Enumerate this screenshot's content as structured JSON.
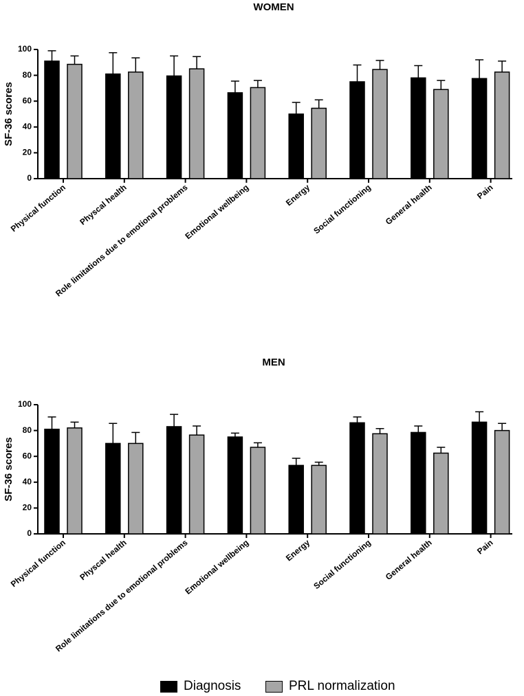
{
  "colors": {
    "diagnosis": "#000000",
    "prl": "#a6a6a6",
    "axis": "#000000"
  },
  "legend": {
    "diagnosis": "Diagnosis",
    "prl": "PRL normalization"
  },
  "chart_data": [
    {
      "type": "bar",
      "title": "WOMEN",
      "ylabel": "SF-36 scores",
      "xlabel": "",
      "ylim": [
        0,
        100
      ],
      "yticks": [
        0,
        20,
        40,
        60,
        80,
        100
      ],
      "yticklabels": [
        "0",
        "20",
        "40",
        "60",
        "80",
        "100"
      ],
      "categories": [
        "Physical function",
        "Physcal health",
        "Role limitations due to emotional problems",
        "Emotional wellbeing",
        "Energy",
        "Social functioning",
        "General health",
        "Pain"
      ],
      "series": [
        {
          "name": "Diagnosis",
          "values": [
            91,
            81,
            79.5,
            66.5,
            50,
            75,
            78,
            77.5
          ],
          "errors": [
            8,
            16.5,
            15.5,
            9,
            9,
            13,
            9.5,
            14.5
          ]
        },
        {
          "name": "PRL normalization",
          "values": [
            88.5,
            82.5,
            85,
            70.5,
            54.5,
            84.5,
            69,
            82.5
          ],
          "errors": [
            6.5,
            11,
            9.5,
            5.5,
            6.5,
            7,
            7,
            8.5
          ]
        }
      ]
    },
    {
      "type": "bar",
      "title": "MEN",
      "ylabel": "SF-36 scores",
      "xlabel": "",
      "ylim": [
        0,
        100
      ],
      "yticks": [
        0,
        20,
        40,
        60,
        80,
        100
      ],
      "yticklabels": [
        "0",
        "20",
        "40",
        "60",
        "80",
        "100"
      ],
      "categories": [
        "Physical function",
        "Physcal health",
        "Role limitations due to emotional problems",
        "Emotional wellbeing",
        "Energy",
        "Social functioning",
        "General health",
        "Pain"
      ],
      "series": [
        {
          "name": "Diagnosis",
          "values": [
            81,
            70,
            83,
            75,
            53,
            86,
            78.5,
            86.5
          ],
          "errors": [
            9.5,
            15.5,
            9.5,
            3,
            5.5,
            4.5,
            5,
            8
          ]
        },
        {
          "name": "PRL normalization",
          "values": [
            82,
            70,
            76.5,
            67,
            53,
            77.5,
            62.5,
            80
          ],
          "errors": [
            4.5,
            8.5,
            7,
            3.5,
            2.5,
            4,
            4.5,
            5.5
          ]
        }
      ]
    }
  ]
}
